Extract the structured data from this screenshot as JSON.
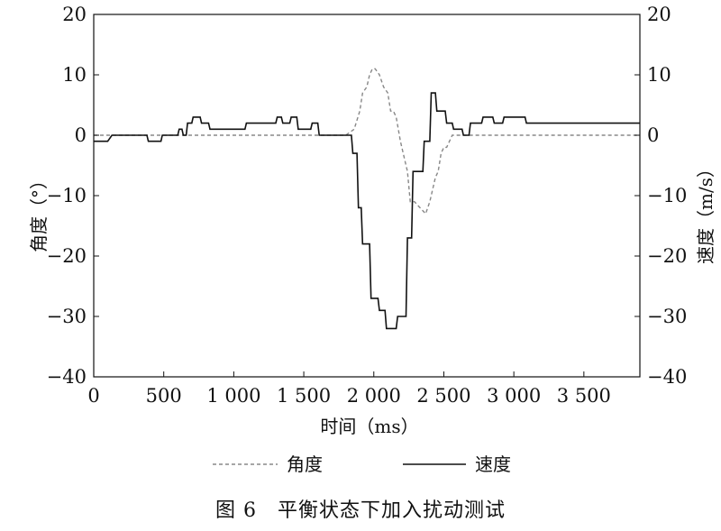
{
  "chart_data": {
    "type": "line",
    "caption": "图 6　平衡状态下加入扰动测试",
    "xlabel": "时间（ms）",
    "ylabel_left": "角度（°）",
    "ylabel_right": "速度（m/s）",
    "xlim": [
      0,
      3900
    ],
    "ylim_left": [
      -40,
      20
    ],
    "ylim_right": [
      -40,
      20
    ],
    "x_ticks": [
      0,
      500,
      1000,
      1500,
      2000,
      2500,
      3000,
      3500
    ],
    "x_tick_labels": [
      "0",
      "500",
      "1 000",
      "1 500",
      "2 000",
      "2 500",
      "3 000",
      "3 500"
    ],
    "y_ticks": [
      20,
      10,
      0,
      -10,
      -20,
      -30,
      -40
    ],
    "y_tick_labels": [
      "20",
      "10",
      "0",
      "−10",
      "−20",
      "−30",
      "−40"
    ],
    "grid": false,
    "legend_position": "bottom",
    "series": [
      {
        "name": "角度",
        "style": "dashed",
        "color": "#888888",
        "x": [
          0,
          1800,
          1860,
          1900,
          1920,
          1950,
          1970,
          1990,
          2010,
          2040,
          2070,
          2100,
          2120,
          2140,
          2160,
          2190,
          2210,
          2240,
          2260,
          2290,
          2330,
          2370,
          2400,
          2420,
          2440,
          2460,
          2480,
          2500,
          2520,
          2540,
          2560,
          2580,
          2620,
          2700,
          3900
        ],
        "values": [
          0,
          0,
          1,
          4,
          7,
          8,
          10,
          11,
          11,
          10,
          8,
          7,
          4,
          4,
          3,
          -1,
          -3,
          -6,
          -11,
          -11,
          -12,
          -13,
          -11,
          -9,
          -7,
          -6,
          -3,
          -2,
          -2,
          -1,
          0,
          0,
          0,
          0,
          0
        ]
      },
      {
        "name": "速度",
        "style": "solid",
        "color": "#111111",
        "x": [
          0,
          100,
          130,
          380,
          390,
          480,
          490,
          600,
          610,
          630,
          640,
          660,
          670,
          700,
          710,
          760,
          770,
          820,
          830,
          890,
          900,
          1080,
          1090,
          1300,
          1310,
          1340,
          1350,
          1400,
          1410,
          1450,
          1460,
          1550,
          1560,
          1600,
          1610,
          1840,
          1850,
          1880,
          1890,
          1910,
          1920,
          1970,
          1980,
          2030,
          2040,
          2080,
          2090,
          2160,
          2170,
          2230,
          2240,
          2270,
          2280,
          2350,
          2360,
          2400,
          2410,
          2440,
          2450,
          2510,
          2520,
          2560,
          2570,
          2630,
          2640,
          2680,
          2690,
          2770,
          2780,
          2850,
          2860,
          2920,
          2930,
          3080,
          3090,
          3410,
          3420,
          3490,
          3500,
          3900
        ],
        "values": [
          -1,
          -1,
          0,
          0,
          -1,
          -1,
          0,
          0,
          1,
          1,
          0,
          0,
          2,
          2,
          3,
          3,
          2,
          2,
          1,
          1,
          1,
          1,
          2,
          2,
          3,
          3,
          2,
          2,
          3,
          3,
          1,
          1,
          2,
          2,
          0,
          0,
          -3,
          -3,
          -12,
          -12,
          -18,
          -18,
          -27,
          -27,
          -29,
          -29,
          -32,
          -32,
          -30,
          -30,
          -17,
          -17,
          -6,
          -6,
          -1,
          -1,
          7,
          7,
          4,
          4,
          2,
          2,
          1,
          1,
          0,
          0,
          2,
          2,
          3,
          3,
          2,
          2,
          3,
          3,
          2,
          2,
          2,
          2,
          2,
          2
        ]
      }
    ]
  }
}
